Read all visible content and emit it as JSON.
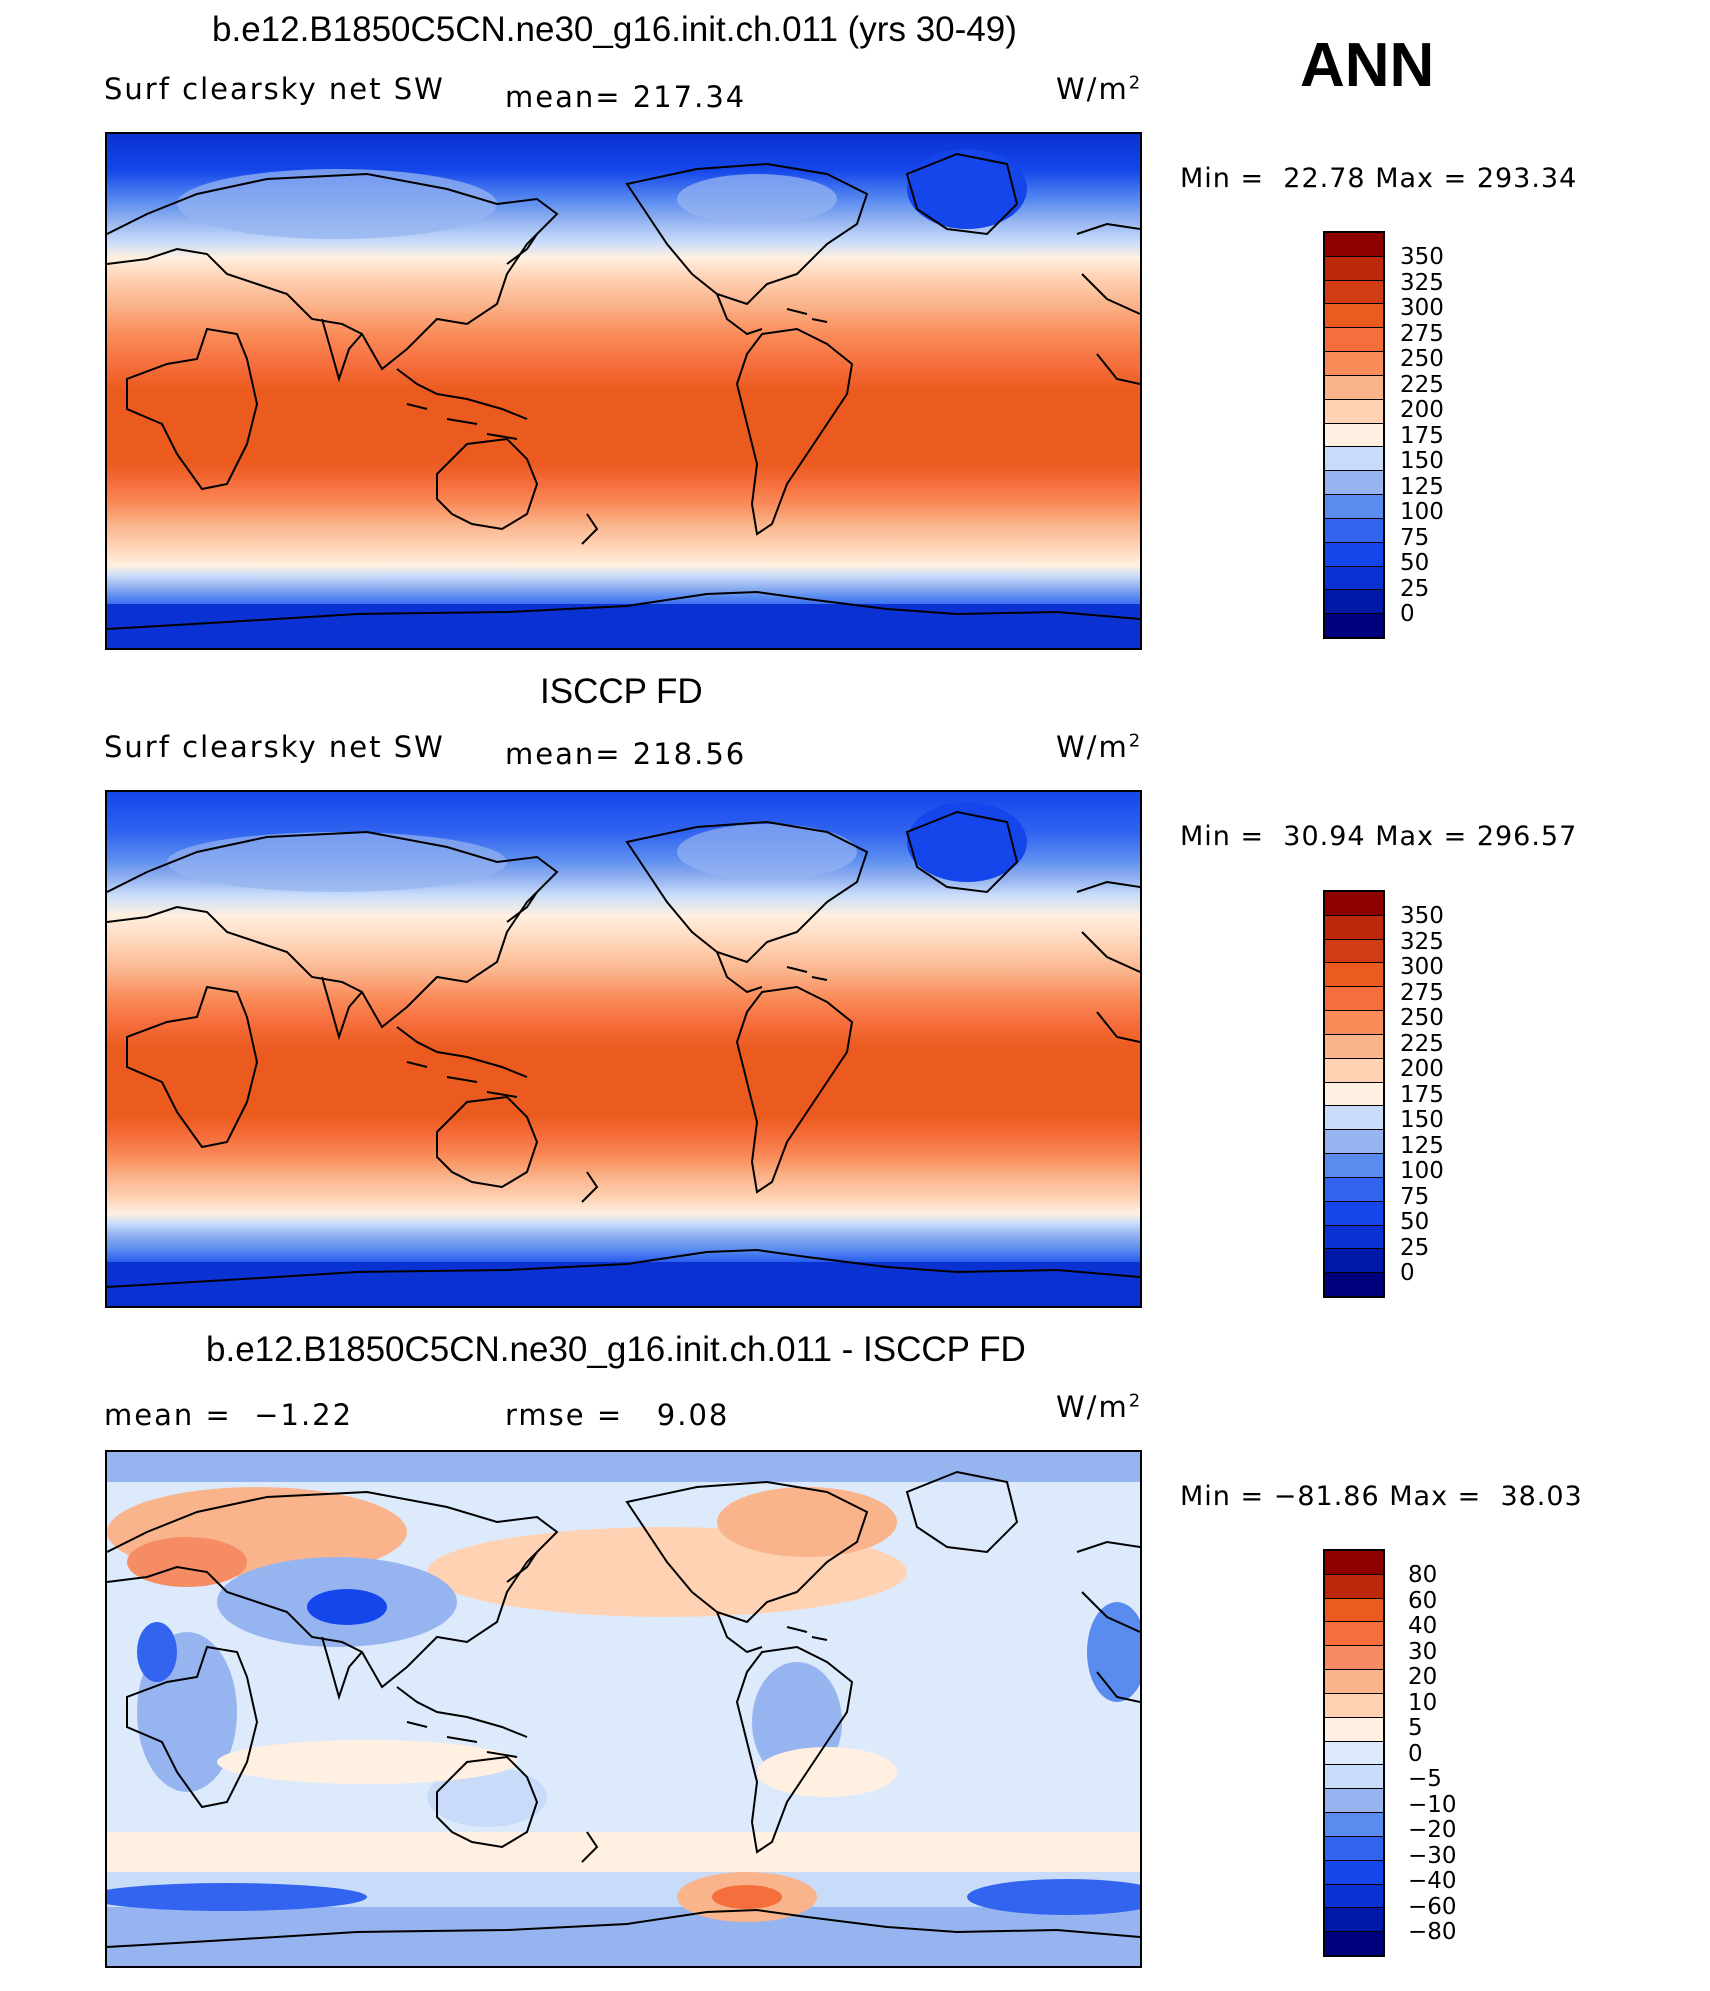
{
  "header": {
    "run_title": "b.e12.B1850C5CN.ne30_g16.init.ch.011 (yrs 30-49)",
    "season": "ANN"
  },
  "colors": {
    "abs_scale": [
      "#00007f",
      "#0019a6",
      "#0a32d2",
      "#1446eb",
      "#3264f0",
      "#5a8cf0",
      "#96b4f0",
      "#c8dcfa",
      "#fff0e1",
      "#ffd2b4",
      "#fab48c",
      "#fa8c5a",
      "#f56e3c",
      "#eb5a1e",
      "#d23c14",
      "#be280a",
      "#8c0000"
    ],
    "diff_scale": [
      "#00007f",
      "#0019a6",
      "#0a32d2",
      "#1446eb",
      "#3264f0",
      "#5a8cf0",
      "#96b4f0",
      "#c8dcfa",
      "#ddeafc",
      "#fff0e1",
      "#ffd2b4",
      "#fab48c",
      "#f58c64",
      "#f56e3c",
      "#eb5a1e",
      "#be280a",
      "#8c0000"
    ]
  },
  "panels": [
    {
      "id": "model",
      "title": "",
      "variable": "Surf clearsky net SW",
      "stat_label": "mean=",
      "stat_value": "217.34",
      "stat2_label": "",
      "stat2_value": "",
      "units": "W/m",
      "units_exp": "2",
      "min_label": "Min =",
      "min_value": "22.78",
      "max_label": "Max =",
      "max_value": "293.34",
      "levels": [
        "350",
        "325",
        "300",
        "275",
        "250",
        "225",
        "200",
        "175",
        "150",
        "125",
        "100",
        "75",
        "50",
        "25",
        "0"
      ]
    },
    {
      "id": "obs",
      "title": "ISCCP FD",
      "variable": "Surf clearsky net SW",
      "stat_label": "mean=",
      "stat_value": "218.56",
      "stat2_label": "",
      "stat2_value": "",
      "units": "W/m",
      "units_exp": "2",
      "min_label": "Min =",
      "min_value": "30.94",
      "max_label": "Max =",
      "max_value": "296.57",
      "levels": [
        "350",
        "325",
        "300",
        "275",
        "250",
        "225",
        "200",
        "175",
        "150",
        "125",
        "100",
        "75",
        "50",
        "25",
        "0"
      ]
    },
    {
      "id": "diff",
      "title": "b.e12.B1850C5CN.ne30_g16.init.ch.011 - ISCCP FD",
      "variable": "",
      "stat_label": "mean =",
      "stat_value": "−1.22",
      "stat2_label": "rmse =",
      "stat2_value": "9.08",
      "units": "W/m",
      "units_exp": "2",
      "min_label": "Min =",
      "min_value": "−81.86",
      "max_label": "Max =",
      "max_value": "38.03",
      "levels": [
        "80",
        "60",
        "40",
        "30",
        "20",
        "10",
        "5",
        "0",
        "−5",
        "−10",
        "−20",
        "−30",
        "−40",
        "−60",
        "−80"
      ]
    }
  ]
}
